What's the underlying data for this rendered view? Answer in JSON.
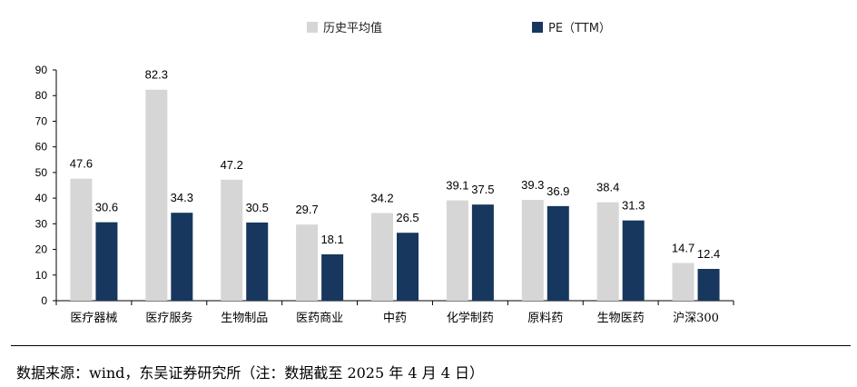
{
  "chart_data": {
    "type": "bar",
    "categories": [
      "医疗器械",
      "医疗服务",
      "生物制品",
      "医药商业",
      "中药",
      "化学制药",
      "原料药",
      "生物医药",
      "沪深300"
    ],
    "series": [
      {
        "name": "历史平均值",
        "values": [
          47.6,
          82.3,
          47.2,
          29.7,
          34.2,
          39.1,
          39.3,
          38.4,
          14.7
        ],
        "color": "#d6d6d6"
      },
      {
        "name": "PE（TTM）",
        "values": [
          30.6,
          34.3,
          30.5,
          18.1,
          26.5,
          37.5,
          36.9,
          31.3,
          12.4
        ],
        "color": "#17375e"
      }
    ],
    "yticks": [
      "0",
      "10",
      "20",
      "30",
      "40",
      "50",
      "60",
      "70",
      "80",
      "90"
    ],
    "ylim": [
      0,
      90
    ],
    "grid": false,
    "legend_position": "top"
  },
  "source_note": "数据来源：wind，东吴证券研究所（注：数据截至 2025 年 4 月 4 日）"
}
